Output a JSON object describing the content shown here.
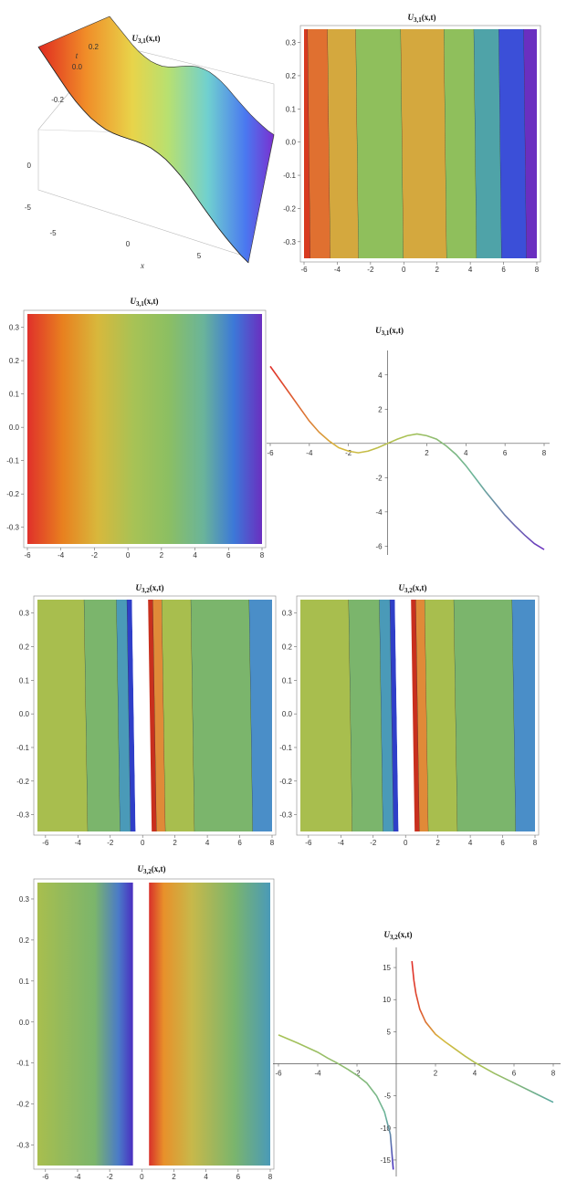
{
  "chart_data": [
    {
      "id": "p1",
      "type": "surface3d",
      "title": "U3,1(x,t)",
      "xlabel": "x",
      "tlabel": "t",
      "xlim": [
        -6,
        8
      ],
      "tlim": [
        -0.35,
        0.35
      ],
      "zlim": [
        -6,
        4
      ],
      "x_ticks": [
        "-5",
        "0",
        "5"
      ],
      "t_ticks": [
        "-0.2",
        "0.0",
        "0.2"
      ],
      "z_ticks": [
        "0",
        "-5"
      ]
    },
    {
      "id": "p2",
      "type": "heatmap",
      "style": "contour",
      "title": "U3,1(x,t)",
      "xlim": [
        -6,
        8
      ],
      "ylim": [
        -0.35,
        0.34
      ],
      "x_ticks": [
        "-6",
        "-4",
        "-2",
        "0",
        "2",
        "4",
        "6",
        "8"
      ],
      "y_ticks": [
        "0.3",
        "0.2",
        "0.1",
        "0.0",
        "-0.1",
        "-0.2",
        "-0.3"
      ],
      "bands": [
        {
          "x0": -6.0,
          "x1": -5.7,
          "color": "#d83a20"
        },
        {
          "x0": -5.7,
          "x1": -4.5,
          "color": "#e07030"
        },
        {
          "x0": -4.5,
          "x1": -2.8,
          "color": "#d4a83e"
        },
        {
          "x0": -2.8,
          "x1": -0.1,
          "color": "#8fbf5c"
        },
        {
          "x0": -0.1,
          "x1": 2.5,
          "color": "#d4a83e"
        },
        {
          "x0": 2.5,
          "x1": 4.3,
          "color": "#8fbf5c"
        },
        {
          "x0": 4.3,
          "x1": 5.8,
          "color": "#4fa3a8"
        },
        {
          "x0": 5.8,
          "x1": 7.3,
          "color": "#3b4fd8"
        },
        {
          "x0": 7.3,
          "x1": 8.0,
          "color": "#6a2fc0"
        }
      ]
    },
    {
      "id": "p3",
      "type": "heatmap",
      "style": "density",
      "title": "U3,1(x,t)",
      "xlim": [
        -6,
        8
      ],
      "ylim": [
        -0.35,
        0.34
      ],
      "x_ticks": [
        "-6",
        "-4",
        "-2",
        "0",
        "2",
        "4",
        "6",
        "8"
      ],
      "y_ticks": [
        "0.3",
        "0.2",
        "0.1",
        "0.0",
        "-0.1",
        "-0.2",
        "-0.3"
      ]
    },
    {
      "id": "p4",
      "type": "line",
      "title": "U3,1(x,t)",
      "xlim": [
        -6,
        8
      ],
      "ylim": [
        -6.3,
        5
      ],
      "x_ticks": [
        "-6",
        "-4",
        "-2",
        "2",
        "4",
        "6",
        "8"
      ],
      "y_ticks": [
        "4",
        "2",
        "-2",
        "-4",
        "-6"
      ],
      "x": [
        -6,
        -5.5,
        -5,
        -4.5,
        -4,
        -3.5,
        -3,
        -2.5,
        -2,
        -1.5,
        -1,
        -0.5,
        0,
        0.5,
        1,
        1.5,
        2,
        2.5,
        3,
        3.5,
        4,
        4.5,
        5,
        5.5,
        6,
        6.5,
        7,
        7.5,
        8
      ],
      "y": [
        4.5,
        3.7,
        2.9,
        2.1,
        1.3,
        0.65,
        0.15,
        -0.25,
        -0.45,
        -0.55,
        -0.45,
        -0.25,
        0,
        0.25,
        0.45,
        0.55,
        0.45,
        0.25,
        -0.15,
        -0.65,
        -1.3,
        -2.05,
        -2.8,
        -3.5,
        -4.2,
        -4.8,
        -5.35,
        -5.85,
        -6.2
      ]
    },
    {
      "id": "p5",
      "type": "heatmap",
      "style": "contour",
      "title": "U3,2(x,t)",
      "xlim": [
        -6.5,
        8
      ],
      "ylim": [
        -0.35,
        0.34
      ],
      "x_ticks": [
        "-6",
        "-4",
        "-2",
        "0",
        "2",
        "4",
        "6",
        "8"
      ],
      "y_ticks": [
        "0.3",
        "0.2",
        "0.1",
        "0.0",
        "-0.1",
        "-0.2",
        "-0.3"
      ],
      "bands": [
        {
          "x0": -6.5,
          "x1": -3.5,
          "color": "#a8be4e"
        },
        {
          "x0": -3.5,
          "x1": -1.5,
          "color": "#7bb56c"
        },
        {
          "x0": -1.5,
          "x1": -0.85,
          "color": "#4a9ab8"
        },
        {
          "x0": -0.85,
          "x1": -0.55,
          "color": "#2f3fc8"
        },
        {
          "x0": -0.55,
          "x1": 0.45,
          "color": "#ffffff"
        },
        {
          "x0": 0.45,
          "x1": 0.75,
          "color": "#c8301e"
        },
        {
          "x0": 0.75,
          "x1": 1.3,
          "color": "#e08a38"
        },
        {
          "x0": 1.3,
          "x1": 3.1,
          "color": "#a8be4e"
        },
        {
          "x0": 3.1,
          "x1": 6.7,
          "color": "#7bb56c"
        },
        {
          "x0": 6.7,
          "x1": 8.0,
          "color": "#4a8ec8"
        }
      ]
    },
    {
      "id": "p6",
      "type": "heatmap",
      "style": "contour",
      "title": "U3,2(x,t)",
      "xlim": [
        -6.5,
        8
      ],
      "ylim": [
        -0.35,
        0.34
      ],
      "x_ticks": [
        "-6",
        "-4",
        "-2",
        "0",
        "2",
        "4",
        "6",
        "8"
      ],
      "y_ticks": [
        "0.3",
        "0.2",
        "0.1",
        "0.0",
        "-0.1",
        "-0.2",
        "-0.3"
      ],
      "bands": [
        {
          "x0": -6.5,
          "x1": -3.4,
          "color": "#a8be4e"
        },
        {
          "x0": -3.4,
          "x1": -1.5,
          "color": "#7bb56c"
        },
        {
          "x0": -1.5,
          "x1": -0.85,
          "color": "#4a9ab8"
        },
        {
          "x0": -0.85,
          "x1": -0.55,
          "color": "#2f3fc8"
        },
        {
          "x0": -0.55,
          "x1": 0.45,
          "color": "#ffffff"
        },
        {
          "x0": 0.45,
          "x1": 0.75,
          "color": "#c8301e"
        },
        {
          "x0": 0.75,
          "x1": 1.3,
          "color": "#e08a38"
        },
        {
          "x0": 1.3,
          "x1": 3.1,
          "color": "#a8be4e"
        },
        {
          "x0": 3.1,
          "x1": 6.7,
          "color": "#7bb56c"
        },
        {
          "x0": 6.7,
          "x1": 8.0,
          "color": "#4a8ec8"
        }
      ]
    },
    {
      "id": "p7",
      "type": "heatmap",
      "style": "density",
      "title": "U3,2(x,t)",
      "xlim": [
        -6.5,
        8
      ],
      "ylim": [
        -0.35,
        0.34
      ],
      "x_ticks": [
        "-6",
        "-4",
        "-2",
        "0",
        "2",
        "4",
        "6",
        "8"
      ],
      "y_ticks": [
        "0.3",
        "0.2",
        "0.1",
        "0.0",
        "-0.1",
        "-0.2",
        "-0.3"
      ]
    },
    {
      "id": "p8",
      "type": "line",
      "title": "U3,2(x,t)",
      "xlim": [
        -6,
        8
      ],
      "ylim": [
        -17,
        17
      ],
      "x_ticks": [
        "-6",
        "-4",
        "-2",
        "2",
        "4",
        "6",
        "8"
      ],
      "y_ticks": [
        "15",
        "10",
        "5",
        "-5",
        "-10",
        "-15"
      ],
      "series": [
        {
          "x": [
            -6,
            -5,
            -4,
            -3.5,
            -3,
            -2.5,
            -2,
            -1.5,
            -1,
            -0.6,
            -0.3,
            -0.15
          ],
          "y": [
            4.5,
            3.2,
            1.8,
            0.9,
            0.1,
            -0.8,
            -1.8,
            -3.0,
            -5.0,
            -7.5,
            -11,
            -16.5
          ]
        },
        {
          "x": [
            0.8,
            0.9,
            1.0,
            1.2,
            1.5,
            2,
            2.5,
            3,
            3.5,
            4,
            5,
            6,
            7,
            8
          ],
          "y": [
            16,
            13,
            11,
            8.5,
            6.5,
            4.6,
            3.4,
            2.3,
            1.2,
            0.2,
            -1.5,
            -3.0,
            -4.5,
            -6.0
          ]
        }
      ]
    }
  ]
}
